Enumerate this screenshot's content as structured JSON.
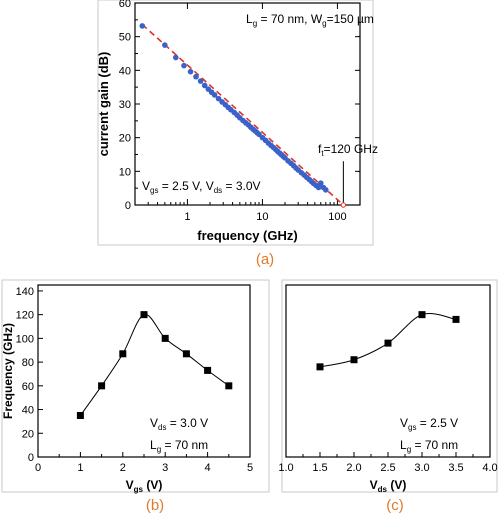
{
  "chart_data": [
    {
      "panel": "a",
      "panel_label": "(a)",
      "type": "scatter",
      "xlabel": "frequency (GHz)",
      "ylabel": "current gain (dB)",
      "xscale": "log",
      "xlim": [
        0.2,
        200
      ],
      "ylim": [
        0,
        60
      ],
      "xticks": [
        1,
        10,
        100
      ],
      "xtick_labels": [
        "1",
        "10",
        "100"
      ],
      "yticks": [
        0,
        10,
        20,
        30,
        40,
        50,
        60
      ],
      "annotations": {
        "device": "L<sub>g</sub> = 70 nm, W<sub>g</sub>=150 µm",
        "bias": "V<sub>gs</sub> = 2.5 V, V<sub>ds</sub> = 3.0V",
        "ft": "f<sub>t</sub>=120 GHz"
      },
      "ft_marker": {
        "x": 120,
        "y": 0
      },
      "colors": {
        "points": "#3a62c8",
        "fit": "#e0302a"
      },
      "series": [
        {
          "kind": "points",
          "x": [
            0.25,
            0.5,
            0.7,
            0.9,
            1.1,
            1.3,
            1.5,
            1.7,
            1.9,
            2.1,
            2.3,
            2.6,
            2.9,
            3.2,
            3.5,
            3.8,
            4.2,
            4.6,
            5,
            5.5,
            6,
            6.5,
            7,
            7.5,
            8,
            8.5,
            9,
            10,
            11,
            12,
            13,
            14,
            15,
            16,
            17,
            18,
            19,
            20,
            22,
            24,
            26,
            28,
            30,
            33,
            36,
            39,
            42,
            45,
            48,
            52,
            56,
            60,
            65,
            70
          ],
          "y": [
            53.2,
            47.5,
            43.8,
            41.4,
            39.6,
            38.1,
            36.8,
            35.5,
            34.4,
            33.5,
            32.7,
            31.6,
            30.6,
            29.8,
            29,
            28.3,
            27.5,
            26.7,
            25.9,
            25.1,
            24.4,
            23.8,
            23.1,
            22.5,
            22,
            21.5,
            21,
            20,
            19.2,
            18.4,
            17.7,
            17.1,
            16.5,
            15.9,
            15.4,
            14.9,
            14.4,
            14,
            13.1,
            12.4,
            11.7,
            11,
            10.4,
            9.6,
            8.9,
            8.2,
            7.6,
            7,
            6.4,
            5.8,
            5.2,
            6.5,
            5.2,
            4.5
          ]
        },
        {
          "kind": "fit",
          "x": [
            0.25,
            120
          ],
          "y": [
            53.6,
            0
          ]
        }
      ]
    },
    {
      "panel": "b",
      "panel_label": "(b)",
      "type": "line",
      "xlabel": "V<sub>gs</sub> (V)",
      "ylabel": "Frequency (GHz)",
      "xlim": [
        0,
        5
      ],
      "ylim": [
        0,
        145
      ],
      "xticks": [
        0,
        1,
        2,
        3,
        4,
        5
      ],
      "yticks": [
        0,
        20,
        40,
        60,
        80,
        100,
        120,
        140
      ],
      "annotations": {
        "bias": "V<sub>ds</sub> = 3.0 V",
        "length": "L<sub>g</sub> = 70 nm"
      },
      "x": [
        1,
        1.5,
        2,
        2.5,
        3,
        3.5,
        4,
        4.5
      ],
      "y": [
        35,
        60,
        87,
        120,
        100,
        87,
        73,
        60
      ]
    },
    {
      "panel": "c",
      "panel_label": "(c)",
      "type": "line",
      "xlabel": "V<sub>ds</sub> (V)",
      "ylabel": "",
      "xlim": [
        1,
        4
      ],
      "ylim": [
        0,
        145
      ],
      "xticks": [
        1,
        1.5,
        2,
        2.5,
        3,
        3.5,
        4
      ],
      "xtick_labels": [
        "1.0",
        "1.5",
        "2.0",
        "2.5",
        "3.0",
        "3.5",
        "4.0"
      ],
      "yticks": [],
      "annotations": {
        "bias": "V<sub>gs</sub> = 2.5 V",
        "length": "L<sub>g</sub> = 70 nm"
      },
      "x": [
        1.5,
        2,
        2.5,
        3,
        3.5
      ],
      "y": [
        76,
        82,
        96,
        120,
        116
      ]
    }
  ]
}
